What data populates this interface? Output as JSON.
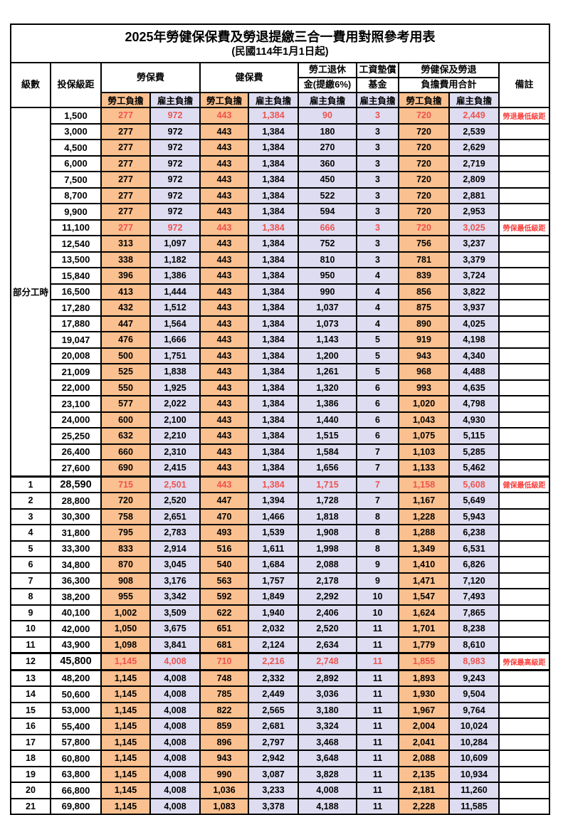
{
  "title": "2025年勞健保保費及勞退提繳三合一費用對照參考用表",
  "subtitle": "(民國114年1月1日起)",
  "header": {
    "level": "級數",
    "bracket": "投保級距",
    "labor_insurance": "勞保費",
    "health_insurance": "健保費",
    "pension_line1": "勞工退休",
    "pension_line2": "金(提繳6%)",
    "wage_fund_line1": "工資墊償",
    "wage_fund_line2": "基金",
    "total_line1": "勞健保及勞退",
    "total_line2": "負擔費用合計",
    "note": "備註",
    "employee_burden": "勞工負擔",
    "employer_burden": "雇主負擔"
  },
  "part_time_label": "部分工時",
  "colors": {
    "employee_col_bg": "#fac08f",
    "employer_col_bg": "#dedcf0",
    "highlight_value_text": "#ee5350",
    "note_text": "#fb423e",
    "grid": "#000000"
  },
  "rows": [
    {
      "level": "",
      "bracket": "1,500",
      "values": [
        "277",
        "972",
        "443",
        "1,384",
        "90",
        "3",
        "720",
        "2,449"
      ],
      "note": "勞退最低級距",
      "highlight": true
    },
    {
      "level": "",
      "bracket": "3,000",
      "values": [
        "277",
        "972",
        "443",
        "1,384",
        "180",
        "3",
        "720",
        "2,539"
      ],
      "note": ""
    },
    {
      "level": "",
      "bracket": "4,500",
      "values": [
        "277",
        "972",
        "443",
        "1,384",
        "270",
        "3",
        "720",
        "2,629"
      ],
      "note": ""
    },
    {
      "level": "",
      "bracket": "6,000",
      "values": [
        "277",
        "972",
        "443",
        "1,384",
        "360",
        "3",
        "720",
        "2,719"
      ],
      "note": ""
    },
    {
      "level": "",
      "bracket": "7,500",
      "values": [
        "277",
        "972",
        "443",
        "1,384",
        "450",
        "3",
        "720",
        "2,809"
      ],
      "note": ""
    },
    {
      "level": "",
      "bracket": "8,700",
      "values": [
        "277",
        "972",
        "443",
        "1,384",
        "522",
        "3",
        "720",
        "2,881"
      ],
      "note": ""
    },
    {
      "level": "",
      "bracket": "9,900",
      "values": [
        "277",
        "972",
        "443",
        "1,384",
        "594",
        "3",
        "720",
        "2,953"
      ],
      "note": ""
    },
    {
      "level": "",
      "bracket": "11,100",
      "values": [
        "277",
        "972",
        "443",
        "1,384",
        "666",
        "3",
        "720",
        "3,025"
      ],
      "note": "勞保最低級距",
      "highlight": true
    },
    {
      "level": "",
      "bracket": "12,540",
      "values": [
        "313",
        "1,097",
        "443",
        "1,384",
        "752",
        "3",
        "756",
        "3,237"
      ],
      "note": ""
    },
    {
      "level": "",
      "bracket": "13,500",
      "values": [
        "338",
        "1,182",
        "443",
        "1,384",
        "810",
        "3",
        "781",
        "3,379"
      ],
      "note": ""
    },
    {
      "level": "",
      "bracket": "15,840",
      "values": [
        "396",
        "1,386",
        "443",
        "1,384",
        "950",
        "4",
        "839",
        "3,724"
      ],
      "note": ""
    },
    {
      "level": "",
      "bracket": "16,500",
      "values": [
        "413",
        "1,444",
        "443",
        "1,384",
        "990",
        "4",
        "856",
        "3,822"
      ],
      "note": ""
    },
    {
      "level": "",
      "bracket": "17,280",
      "values": [
        "432",
        "1,512",
        "443",
        "1,384",
        "1,037",
        "4",
        "875",
        "3,937"
      ],
      "note": ""
    },
    {
      "level": "",
      "bracket": "17,880",
      "values": [
        "447",
        "1,564",
        "443",
        "1,384",
        "1,073",
        "4",
        "890",
        "4,025"
      ],
      "note": ""
    },
    {
      "level": "",
      "bracket": "19,047",
      "values": [
        "476",
        "1,666",
        "443",
        "1,384",
        "1,143",
        "5",
        "919",
        "4,198"
      ],
      "note": ""
    },
    {
      "level": "",
      "bracket": "20,008",
      "values": [
        "500",
        "1,751",
        "443",
        "1,384",
        "1,200",
        "5",
        "943",
        "4,340"
      ],
      "note": ""
    },
    {
      "level": "",
      "bracket": "21,009",
      "values": [
        "525",
        "1,838",
        "443",
        "1,384",
        "1,261",
        "5",
        "968",
        "4,488"
      ],
      "note": ""
    },
    {
      "level": "",
      "bracket": "22,000",
      "values": [
        "550",
        "1,925",
        "443",
        "1,384",
        "1,320",
        "6",
        "993",
        "4,635"
      ],
      "note": ""
    },
    {
      "level": "",
      "bracket": "23,100",
      "values": [
        "577",
        "2,022",
        "443",
        "1,384",
        "1,386",
        "6",
        "1,020",
        "4,798"
      ],
      "note": ""
    },
    {
      "level": "",
      "bracket": "24,000",
      "values": [
        "600",
        "2,100",
        "443",
        "1,384",
        "1,440",
        "6",
        "1,043",
        "4,930"
      ],
      "note": ""
    },
    {
      "level": "",
      "bracket": "25,250",
      "values": [
        "632",
        "2,210",
        "443",
        "1,384",
        "1,515",
        "6",
        "1,075",
        "5,115"
      ],
      "note": ""
    },
    {
      "level": "",
      "bracket": "26,400",
      "values": [
        "660",
        "2,310",
        "443",
        "1,384",
        "1,584",
        "7",
        "1,103",
        "5,285"
      ],
      "note": ""
    },
    {
      "level": "",
      "bracket": "27,600",
      "values": [
        "690",
        "2,415",
        "443",
        "1,384",
        "1,656",
        "7",
        "1,133",
        "5,462"
      ],
      "note": ""
    },
    {
      "level": "1",
      "bracket": "28,590",
      "values": [
        "715",
        "2,501",
        "443",
        "1,384",
        "1,715",
        "7",
        "1,158",
        "5,608"
      ],
      "note": "健保最低級距",
      "highlight": true,
      "key": true,
      "thick_top": true
    },
    {
      "level": "2",
      "bracket": "28,800",
      "values": [
        "720",
        "2,520",
        "447",
        "1,394",
        "1,728",
        "7",
        "1,167",
        "5,649"
      ],
      "note": ""
    },
    {
      "level": "3",
      "bracket": "30,300",
      "values": [
        "758",
        "2,651",
        "470",
        "1,466",
        "1,818",
        "8",
        "1,228",
        "5,943"
      ],
      "note": ""
    },
    {
      "level": "4",
      "bracket": "31,800",
      "values": [
        "795",
        "2,783",
        "493",
        "1,539",
        "1,908",
        "8",
        "1,288",
        "6,238"
      ],
      "note": ""
    },
    {
      "level": "5",
      "bracket": "33,300",
      "values": [
        "833",
        "2,914",
        "516",
        "1,611",
        "1,998",
        "8",
        "1,349",
        "6,531"
      ],
      "note": ""
    },
    {
      "level": "6",
      "bracket": "34,800",
      "values": [
        "870",
        "3,045",
        "540",
        "1,684",
        "2,088",
        "9",
        "1,410",
        "6,826"
      ],
      "note": ""
    },
    {
      "level": "7",
      "bracket": "36,300",
      "values": [
        "908",
        "3,176",
        "563",
        "1,757",
        "2,178",
        "9",
        "1,471",
        "7,120"
      ],
      "note": ""
    },
    {
      "level": "8",
      "bracket": "38,200",
      "values": [
        "955",
        "3,342",
        "592",
        "1,849",
        "2,292",
        "10",
        "1,547",
        "7,493"
      ],
      "note": ""
    },
    {
      "level": "9",
      "bracket": "40,100",
      "values": [
        "1,002",
        "3,509",
        "622",
        "1,940",
        "2,406",
        "10",
        "1,624",
        "7,865"
      ],
      "note": ""
    },
    {
      "level": "10",
      "bracket": "42,000",
      "values": [
        "1,050",
        "3,675",
        "651",
        "2,032",
        "2,520",
        "11",
        "1,701",
        "8,238"
      ],
      "note": ""
    },
    {
      "level": "11",
      "bracket": "43,900",
      "values": [
        "1,098",
        "3,841",
        "681",
        "2,124",
        "2,634",
        "11",
        "1,779",
        "8,610"
      ],
      "note": ""
    },
    {
      "level": "12",
      "bracket": "45,800",
      "values": [
        "1,145",
        "4,008",
        "710",
        "2,216",
        "2,748",
        "11",
        "1,855",
        "8,983"
      ],
      "note": "勞保最高級距",
      "highlight": true,
      "key": true,
      "thick_top": true,
      "thick_bottom": true
    },
    {
      "level": "13",
      "bracket": "48,200",
      "values": [
        "1,145",
        "4,008",
        "748",
        "2,332",
        "2,892",
        "11",
        "1,893",
        "9,243"
      ],
      "note": ""
    },
    {
      "level": "14",
      "bracket": "50,600",
      "values": [
        "1,145",
        "4,008",
        "785",
        "2,449",
        "3,036",
        "11",
        "1,930",
        "9,504"
      ],
      "note": ""
    },
    {
      "level": "15",
      "bracket": "53,000",
      "values": [
        "1,145",
        "4,008",
        "822",
        "2,565",
        "3,180",
        "11",
        "1,967",
        "9,764"
      ],
      "note": ""
    },
    {
      "level": "16",
      "bracket": "55,400",
      "values": [
        "1,145",
        "4,008",
        "859",
        "2,681",
        "3,324",
        "11",
        "2,004",
        "10,024"
      ],
      "note": ""
    },
    {
      "level": "17",
      "bracket": "57,800",
      "values": [
        "1,145",
        "4,008",
        "896",
        "2,797",
        "3,468",
        "11",
        "2,041",
        "10,284"
      ],
      "note": ""
    },
    {
      "level": "18",
      "bracket": "60,800",
      "values": [
        "1,145",
        "4,008",
        "943",
        "2,942",
        "3,648",
        "11",
        "2,088",
        "10,609"
      ],
      "note": ""
    },
    {
      "level": "19",
      "bracket": "63,800",
      "values": [
        "1,145",
        "4,008",
        "990",
        "3,087",
        "3,828",
        "11",
        "2,135",
        "10,934"
      ],
      "note": ""
    },
    {
      "level": "20",
      "bracket": "66,800",
      "values": [
        "1,145",
        "4,008",
        "1,036",
        "3,233",
        "4,008",
        "11",
        "2,181",
        "11,260"
      ],
      "note": ""
    },
    {
      "level": "21",
      "bracket": "69,800",
      "values": [
        "1,145",
        "4,008",
        "1,083",
        "3,378",
        "4,188",
        "11",
        "2,228",
        "11,585"
      ],
      "note": ""
    }
  ]
}
